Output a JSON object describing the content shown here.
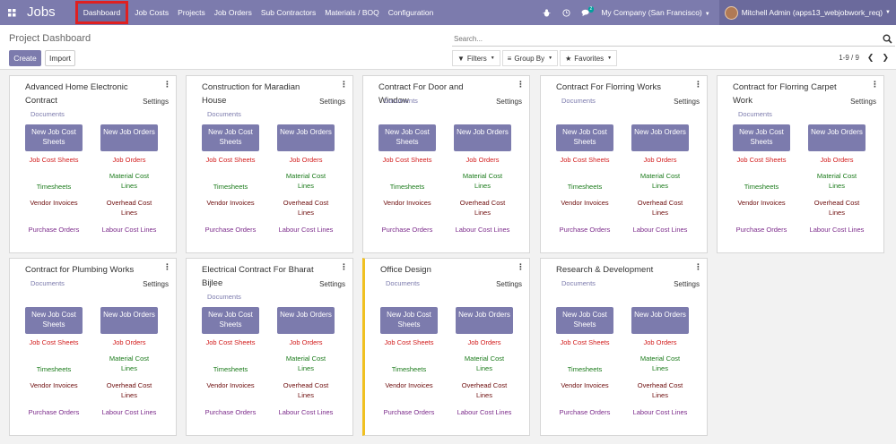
{
  "navbar": {
    "app_name": "Jobs",
    "menu": [
      "Dashboard",
      "Job Costs",
      "Projects",
      "Job Orders",
      "Sub Contractors",
      "Materials / BOQ",
      "Configuration"
    ],
    "chat_count": "2",
    "company": "My Company (San Francisco)",
    "user": "Mitchell Admin (apps13_webjobwork_req)"
  },
  "control": {
    "breadcrumb": "Project Dashboard",
    "create_label": "Create",
    "import_label": "Import",
    "search_placeholder": "Search...",
    "filters_label": "Filters",
    "groupby_label": "Group By",
    "favorites_label": "Favorites",
    "pager": "1-9 / 9"
  },
  "card_labels": {
    "settings": "Settings",
    "documents": "Documents",
    "new_job_cost": "New Job Cost Sheets",
    "new_job_orders": "New Job Orders",
    "job_cost_sheets": "Job Cost Sheets",
    "job_orders": "Job Orders",
    "timesheets": "Timesheets",
    "material_cost": "Material Cost Lines",
    "vendor_invoices": "Vendor Invoices",
    "overhead_cost": "Overhead Cost Lines",
    "purchase_orders": "Purchase Orders",
    "labour_cost": "Labour Cost Lines"
  },
  "projects": [
    "Advanced Home Electronic Contract",
    "Construction for Maradian House",
    "Contract For Door and Window",
    "Contract For Florring Works",
    "Contract for Florring Carpet Work",
    "Contract for Plumbing Works",
    "Electrical Contract For Bharat Bijlee",
    "Office Design",
    "Research & Development"
  ],
  "colors": {
    "brand": "#7c7bad",
    "highlight_stripe": "#f0c020",
    "active_outline": "#e02020"
  }
}
